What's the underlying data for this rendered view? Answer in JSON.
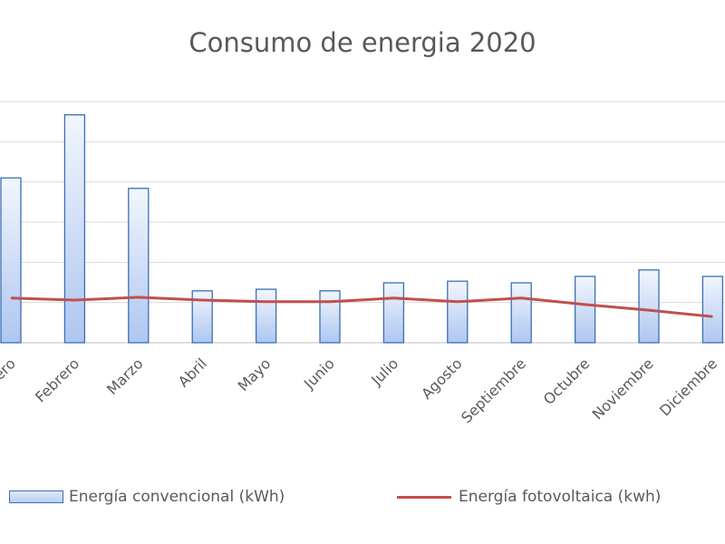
{
  "chart_data": {
    "type": "bar",
    "title": "Consumo de energia 2020",
    "categories": [
      "Enero",
      "Febrero",
      "Marzo",
      "Abril",
      "Mayo",
      "Junio",
      "Julio",
      "Agosto",
      "Septiembre",
      "Octubre",
      "Noviembre",
      "Diciembre"
    ],
    "series": [
      {
        "name": "Energía convencional (kWh)",
        "type": "bar",
        "color": "#3a6fb5",
        "values": [
          4.1,
          5.67,
          3.84,
          1.29,
          1.33,
          1.29,
          1.49,
          1.53,
          1.49,
          1.65,
          1.81,
          1.65
        ]
      },
      {
        "name": "Energía fotovoltaica (kwh)",
        "type": "line",
        "color": "#c0504d",
        "values": [
          1.11,
          1.06,
          1.13,
          1.06,
          1.02,
          1.02,
          1.11,
          1.02,
          1.11,
          0.95,
          0.81,
          0.65
        ]
      }
    ],
    "ylim": [
      0,
      6
    ],
    "grid": true,
    "legend": "bottom",
    "xlabel": "",
    "ylabel": ""
  }
}
